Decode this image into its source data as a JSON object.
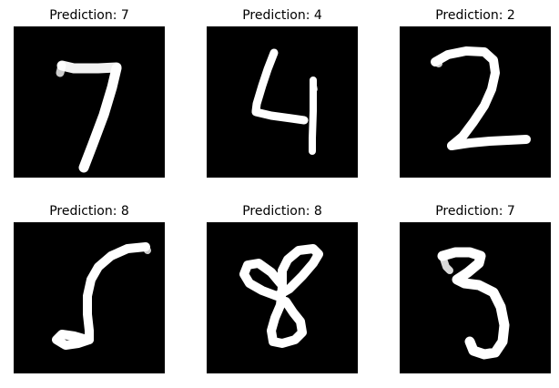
{
  "panels": [
    {
      "title": "Prediction: 7",
      "digit_image": "handwritten-digit-7"
    },
    {
      "title": "Prediction: 4",
      "digit_image": "handwritten-digit-4"
    },
    {
      "title": "Prediction: 2",
      "digit_image": "handwritten-digit-2"
    },
    {
      "title": "Prediction: 8",
      "digit_image": "handwritten-digit-5"
    },
    {
      "title": "Prediction: 8",
      "digit_image": "handwritten-digit-8"
    },
    {
      "title": "Prediction: 7",
      "digit_image": "handwritten-digit-3"
    }
  ],
  "colors": {
    "background": "#000000",
    "stroke": "#ffffff",
    "text": "#000000"
  }
}
